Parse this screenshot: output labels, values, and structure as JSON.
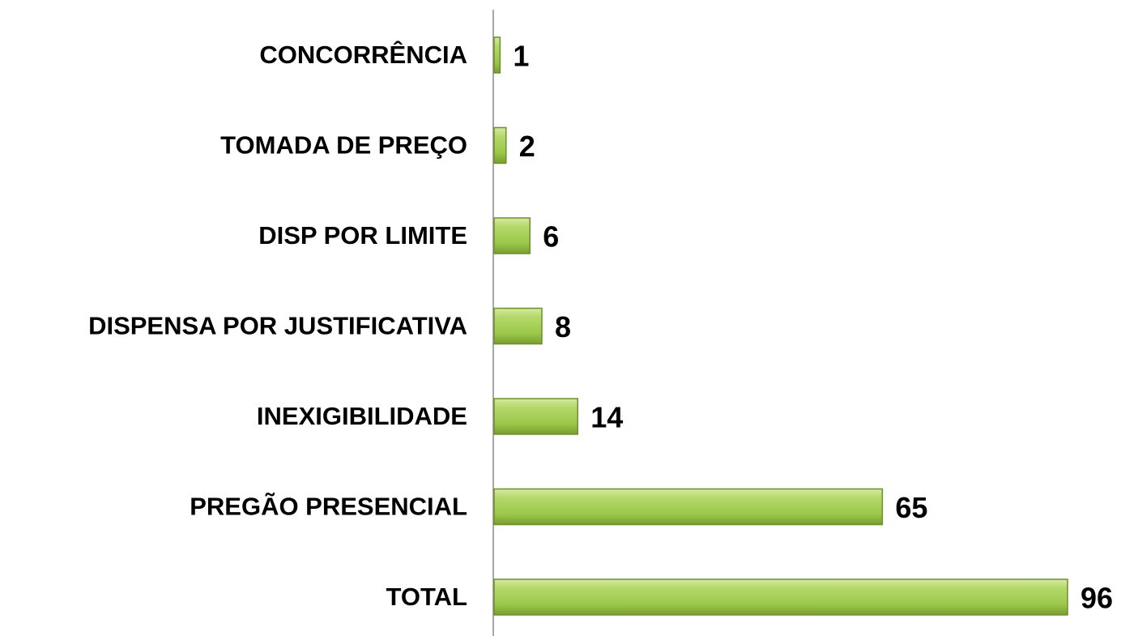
{
  "chart_data": {
    "type": "barh",
    "categories": [
      "CONCORRÊNCIA",
      "TOMADA DE PREÇO",
      "DISP POR LIMITE",
      "DISPENSA POR JUSTIFICATIVA",
      "INEXIGIBILIDADE",
      "PREGÃO PRESENCIAL",
      "TOTAL"
    ],
    "values": [
      1,
      2,
      6,
      8,
      14,
      65,
      96
    ],
    "color": "#9bc84a"
  }
}
